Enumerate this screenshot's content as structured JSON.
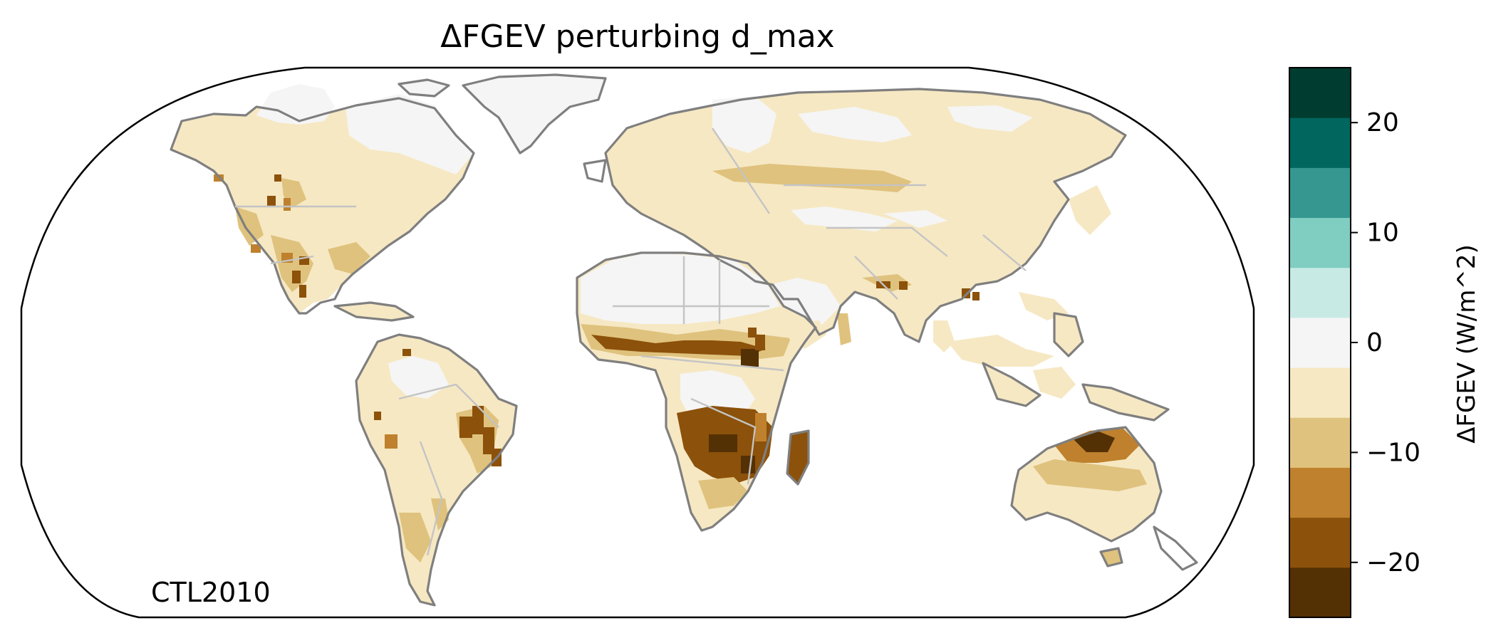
{
  "title": "ΔFGEV perturbing d_max",
  "corner_label": "CTL2010",
  "colorbar": {
    "label": "ΔFGEV (W/m^2)",
    "range": [
      -25,
      25
    ],
    "bin_colors": [
      "#543005",
      "#8c510a",
      "#bf812d",
      "#dfc27d",
      "#f6e8c3",
      "#f5f5f5",
      "#c7eae5",
      "#80cdc1",
      "#35978f",
      "#01665e",
      "#003c30"
    ],
    "ticks": [
      {
        "value": 20,
        "label": "20"
      },
      {
        "value": 10,
        "label": "10"
      },
      {
        "value": 0,
        "label": "0"
      },
      {
        "value": -10,
        "label": "−10"
      },
      {
        "value": -20,
        "label": "−20"
      }
    ]
  },
  "map": {
    "projection": "Robinson",
    "coastline_color": "#7f7f7f",
    "border_color": "#c4c4c4",
    "ocean_color": "#ffffff"
  },
  "chart_data": {
    "type": "heatmap",
    "title": "ΔFGEV perturbing d_max",
    "colorbar_label": "ΔFGEV (W/m^2)",
    "value_range": [
      -25,
      25
    ],
    "levels": [
      -25,
      -20,
      -15,
      -10,
      -5,
      -1,
      1,
      5,
      10,
      15,
      20,
      25
    ],
    "annotation": "CTL2010"
  }
}
